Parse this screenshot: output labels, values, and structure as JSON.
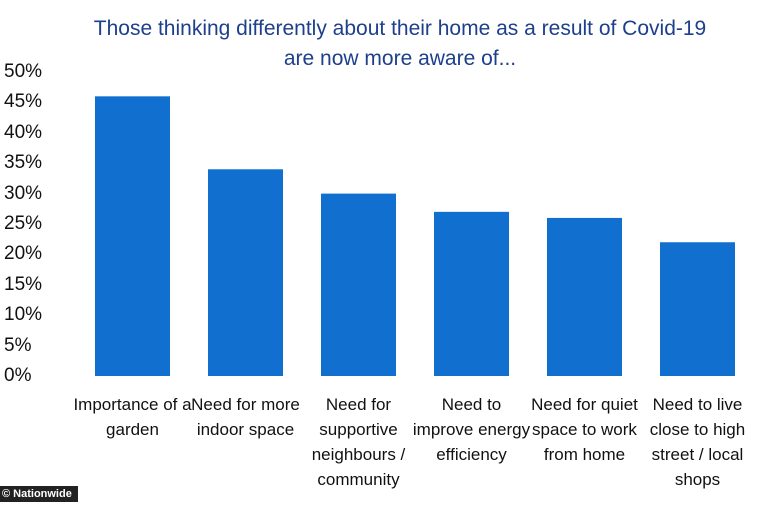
{
  "chart_data": {
    "type": "bar",
    "title": "Those thinking differently about their home as a result of Covid-19 are now more aware of...",
    "categories": [
      "Importance of a garden",
      "Need for more indoor space",
      "Need for supportive neighbours / community",
      "Need to improve energy efficiency",
      "Need for quiet space to work from home",
      "Need to live close to high street / local shops"
    ],
    "values": [
      46,
      34,
      30,
      27,
      26,
      22
    ],
    "color": "#1170cf",
    "ylim": [
      0,
      50
    ],
    "yticks": [
      {
        "value": 0,
        "label": "0%"
      },
      {
        "value": 5,
        "label": "5%"
      },
      {
        "value": 10,
        "label": "10%"
      },
      {
        "value": 15,
        "label": "15%"
      },
      {
        "value": 20,
        "label": "20%"
      },
      {
        "value": 25,
        "label": "25%"
      },
      {
        "value": 30,
        "label": "30%"
      },
      {
        "value": 35,
        "label": "35%"
      },
      {
        "value": 40,
        "label": "40%"
      },
      {
        "value": 45,
        "label": "45%"
      },
      {
        "value": 50,
        "label": "50%"
      }
    ],
    "grid": false,
    "source": "© Nationwide"
  }
}
